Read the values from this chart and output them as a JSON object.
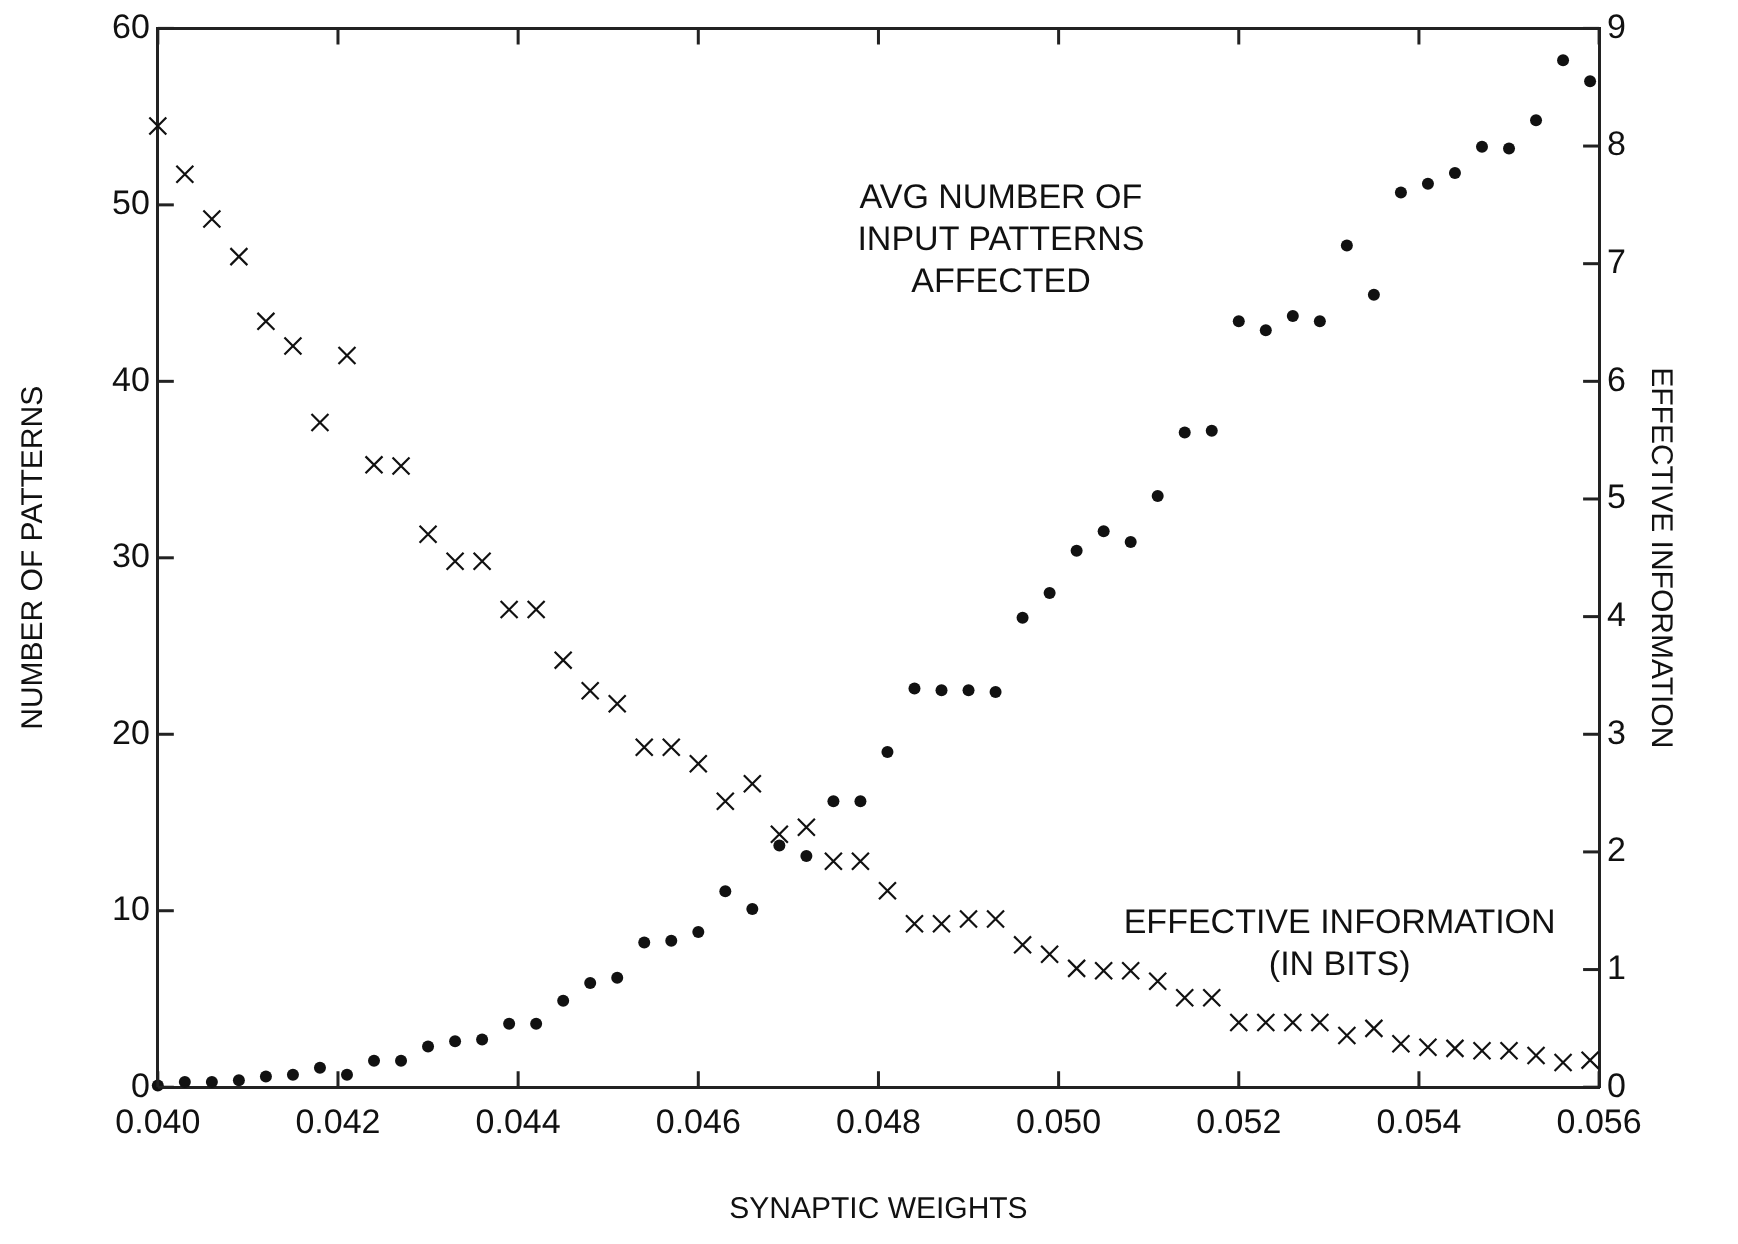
{
  "chart_data": {
    "type": "scatter",
    "xlabel": "SYNAPTIC WEIGHTS",
    "ylabel": "NUMBER OF PATTERNS",
    "y2label": "EFFECTIVE INFORMATION",
    "x": [
      0.04,
      0.0403,
      0.0406,
      0.0409,
      0.0412,
      0.0415,
      0.0418,
      0.0421,
      0.0424,
      0.0427,
      0.043,
      0.0433,
      0.0436,
      0.0439,
      0.0442,
      0.0445,
      0.0448,
      0.0451,
      0.0454,
      0.0457,
      0.046,
      0.0463,
      0.0466,
      0.0469,
      0.0472,
      0.0475,
      0.0478,
      0.0481,
      0.0484,
      0.0487,
      0.049,
      0.0493,
      0.0496,
      0.0499,
      0.0502,
      0.0505,
      0.0508,
      0.0511,
      0.0514,
      0.0517,
      0.052,
      0.0523,
      0.0526,
      0.0529,
      0.0532,
      0.0535,
      0.0538,
      0.0541,
      0.0544,
      0.0547,
      0.055,
      0.0553,
      0.0556,
      0.0559
    ],
    "series": [
      {
        "name": "AVG NUMBER OF INPUT PATTERNS AFFECTED",
        "color": "#111111",
        "marker": "circle",
        "values": [
          0.1,
          0.3,
          0.3,
          0.4,
          0.6,
          0.7,
          1.1,
          0.7,
          1.5,
          1.5,
          2.3,
          2.6,
          2.7,
          3.6,
          3.6,
          4.9,
          5.9,
          6.2,
          8.2,
          8.3,
          8.8,
          11.1,
          10.1,
          13.7,
          13.1,
          16.2,
          16.2,
          19.0,
          22.6,
          22.5,
          22.5,
          22.4,
          26.6,
          28.0,
          30.4,
          31.5,
          30.9,
          33.5,
          37.1,
          37.2,
          43.4,
          42.9,
          43.7,
          43.4,
          47.7,
          44.9,
          50.7,
          51.2,
          51.8,
          53.3,
          53.2,
          54.8,
          58.2,
          57.0
        ]
      },
      {
        "name": "EFFECTIVE INFORMATION (IN BITS)",
        "color": "#111111",
        "marker": "cross",
        "axis": "y2",
        "values": [
          8.17,
          7.76,
          7.38,
          7.06,
          6.51,
          6.3,
          5.65,
          6.22,
          5.29,
          5.28,
          4.7,
          4.47,
          4.47,
          4.06,
          4.06,
          3.63,
          3.37,
          3.26,
          2.89,
          2.89,
          2.75,
          2.43,
          2.58,
          2.15,
          2.21,
          1.92,
          1.92,
          1.67,
          1.39,
          1.39,
          1.43,
          1.43,
          1.21,
          1.13,
          1.01,
          0.99,
          0.99,
          0.9,
          0.76,
          0.76,
          0.55,
          0.55,
          0.55,
          0.55,
          0.44,
          0.5,
          0.37,
          0.34,
          0.33,
          0.31,
          0.31,
          0.27,
          0.21,
          0.23
        ]
      }
    ],
    "xlim": [
      0.04,
      0.056
    ],
    "xticks": [
      {
        "value": 0.04,
        "label": "0.040"
      },
      {
        "value": 0.042,
        "label": "0.042"
      },
      {
        "value": 0.044,
        "label": "0.044"
      },
      {
        "value": 0.046,
        "label": "0.046"
      },
      {
        "value": 0.048,
        "label": "0.048"
      },
      {
        "value": 0.05,
        "label": "0.050"
      },
      {
        "value": 0.052,
        "label": "0.052"
      },
      {
        "value": 0.054,
        "label": "0.054"
      },
      {
        "value": 0.056,
        "label": "0.056"
      }
    ],
    "ylim": [
      0,
      60
    ],
    "yticks": [
      0,
      10,
      20,
      30,
      40,
      50,
      60
    ],
    "y2lim": [
      0,
      9
    ],
    "y2ticks": [
      0,
      1,
      2,
      3,
      4,
      5,
      6,
      7,
      8,
      9
    ],
    "grid": false,
    "legend": false
  }
}
